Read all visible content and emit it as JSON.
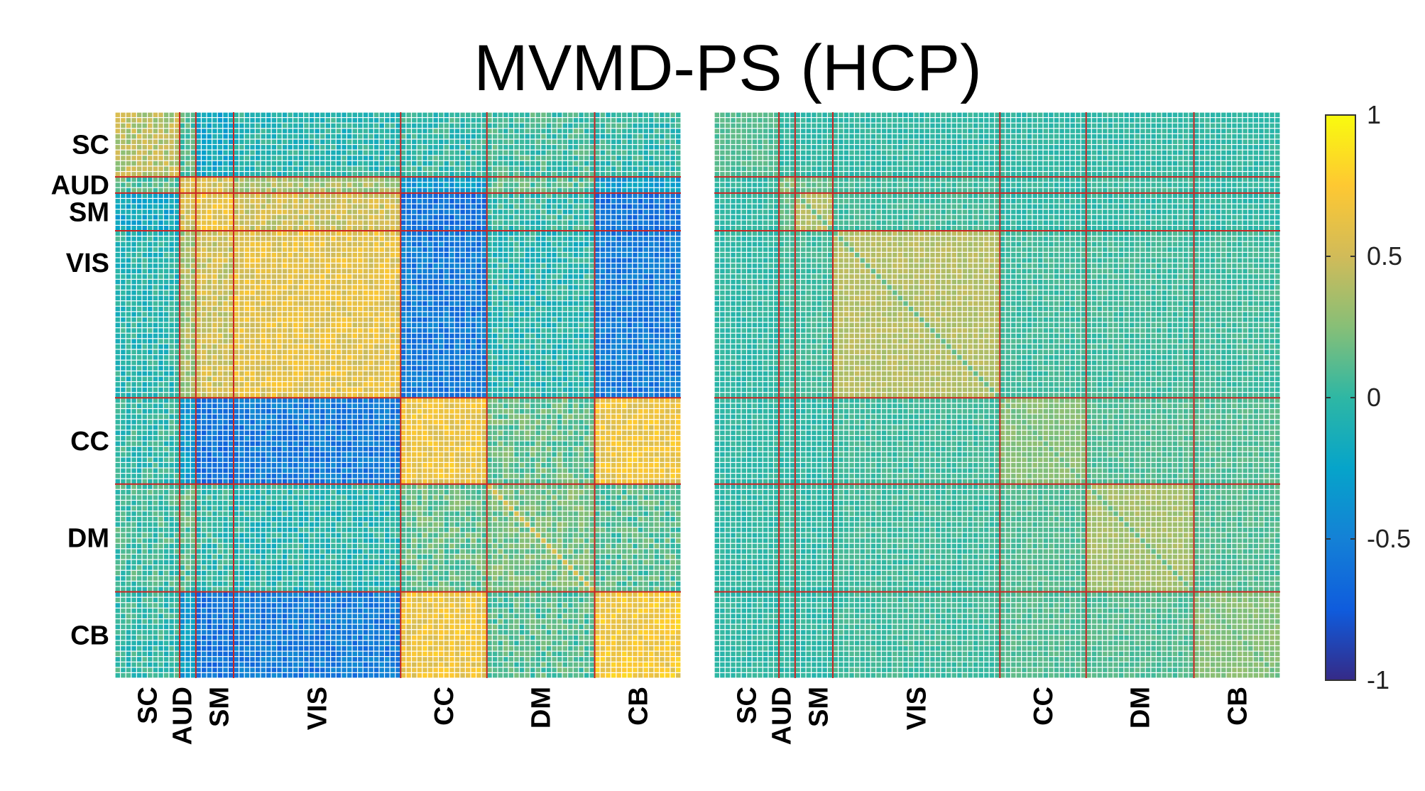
{
  "title": "MVMD-PS (HCP)",
  "chart_data": {
    "type": "heatmap",
    "title": "MVMD-PS (HCP)",
    "grid_size": 105,
    "networks": [
      {
        "label": "SC",
        "start": 0,
        "end": 12
      },
      {
        "label": "AUD",
        "start": 12,
        "end": 15
      },
      {
        "label": "SM",
        "start": 15,
        "end": 22
      },
      {
        "label": "VIS",
        "start": 22,
        "end": 53
      },
      {
        "label": "CC",
        "start": 53,
        "end": 69
      },
      {
        "label": "DM",
        "start": 69,
        "end": 89
      },
      {
        "label": "CB",
        "start": 89,
        "end": 105
      }
    ],
    "row_labels": [
      "SC",
      "AUD",
      "SM",
      "VIS",
      "CC",
      "DM",
      "CB"
    ],
    "col_labels": [
      "SC",
      "AUD",
      "SM",
      "VIS",
      "CC",
      "DM",
      "CB"
    ],
    "panels": [
      {
        "block_means": [
          [
            0.4,
            0.1,
            -0.2,
            -0.05,
            0.0,
            0.05,
            0.0
          ],
          [
            0.1,
            0.55,
            0.5,
            0.35,
            -0.3,
            0.1,
            -0.3
          ],
          [
            -0.2,
            0.5,
            0.65,
            0.5,
            -0.6,
            0.0,
            -0.6
          ],
          [
            -0.05,
            0.35,
            0.5,
            0.6,
            -0.55,
            -0.05,
            -0.55
          ],
          [
            0.0,
            -0.3,
            -0.6,
            -0.55,
            0.65,
            0.15,
            0.65
          ],
          [
            0.05,
            0.1,
            0.0,
            -0.05,
            0.15,
            0.2,
            0.1
          ],
          [
            0.0,
            -0.3,
            -0.6,
            -0.55,
            0.65,
            0.1,
            0.7
          ]
        ]
      },
      {
        "block_means": [
          [
            0.1,
            0.0,
            0.0,
            0.0,
            0.0,
            0.0,
            0.0
          ],
          [
            0.0,
            0.3,
            0.15,
            0.05,
            0.0,
            0.05,
            0.0
          ],
          [
            0.0,
            0.15,
            0.4,
            0.05,
            0.0,
            0.0,
            0.0
          ],
          [
            0.0,
            0.05,
            0.05,
            0.4,
            0.05,
            0.05,
            0.05
          ],
          [
            0.0,
            0.0,
            0.0,
            0.05,
            0.25,
            0.1,
            0.1
          ],
          [
            0.0,
            0.05,
            0.0,
            0.05,
            0.1,
            0.35,
            0.1
          ],
          [
            0.0,
            0.0,
            0.0,
            0.05,
            0.1,
            0.1,
            0.25
          ]
        ]
      }
    ],
    "colorbar": {
      "range": [
        -1,
        1
      ],
      "ticks": [
        1,
        0.5,
        0,
        -0.5,
        -1
      ],
      "tick_labels": [
        "1",
        "0.5",
        "0",
        "-0.5",
        "-1"
      ],
      "colormap": "parula"
    },
    "divider_color": "#cc2222"
  }
}
